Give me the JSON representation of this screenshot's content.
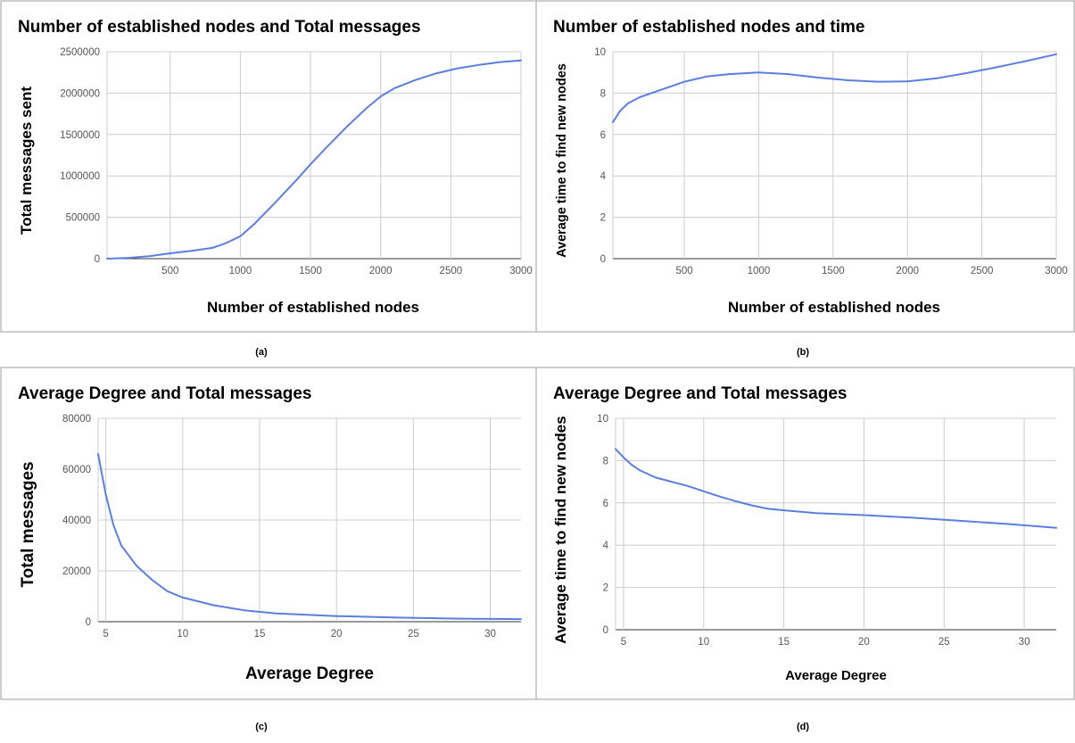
{
  "colors": {
    "series": "#5b7fe0",
    "grid": "#cccccc",
    "border": "#9e9e9e"
  },
  "chart_data": [
    {
      "type": "line",
      "caption": "(a)",
      "title": "Number of established nodes and Total messages",
      "xlabel": "Number of established nodes",
      "ylabel": "Total messages sent",
      "xlim": [
        50,
        3000
      ],
      "ylim": [
        0,
        2500000
      ],
      "xticks": [
        500,
        1000,
        1500,
        2000,
        2500,
        3000
      ],
      "yticks": [
        0,
        500000,
        1000000,
        1500000,
        2000000,
        2500000
      ],
      "ytick_labels": [
        "0",
        "500000",
        "1000000",
        "1500000",
        "2000000",
        "2500000"
      ],
      "grid": true,
      "series": [
        {
          "x": [
            50,
            200,
            350,
            500,
            650,
            800,
            900,
            1000,
            1100,
            1250,
            1400,
            1500,
            1600,
            1750,
            1900,
            2000,
            2100,
            2250,
            2400,
            2550,
            2700,
            2850,
            3000
          ],
          "y": [
            0,
            10000,
            30000,
            65000,
            95000,
            130000,
            190000,
            270000,
            420000,
            680000,
            950000,
            1140000,
            1320000,
            1580000,
            1820000,
            1960000,
            2060000,
            2160000,
            2240000,
            2300000,
            2340000,
            2375000,
            2395000
          ]
        }
      ]
    },
    {
      "type": "line",
      "caption": "(b)",
      "title": "Number of established nodes and time",
      "xlabel": "Number of established nodes",
      "ylabel": "Average time to find new nodes",
      "xlim": [
        20,
        3000
      ],
      "ylim": [
        0,
        10
      ],
      "xticks": [
        500,
        1000,
        1500,
        2000,
        2500,
        3000
      ],
      "yticks": [
        0,
        2,
        4,
        6,
        8,
        10
      ],
      "ytick_labels": [
        "0",
        "2",
        "4",
        "6",
        "8",
        "10"
      ],
      "grid": true,
      "series": [
        {
          "x": [
            20,
            70,
            120,
            200,
            300,
            400,
            500,
            650,
            800,
            1000,
            1200,
            1400,
            1600,
            1800,
            2000,
            2200,
            2400,
            2600,
            2800,
            3000
          ],
          "y": [
            6.6,
            7.15,
            7.5,
            7.8,
            8.05,
            8.3,
            8.55,
            8.8,
            8.92,
            9.0,
            8.92,
            8.75,
            8.62,
            8.55,
            8.57,
            8.72,
            8.97,
            9.25,
            9.55,
            9.88
          ]
        }
      ]
    },
    {
      "type": "line",
      "caption": "(c)",
      "title": "Average Degree and Total messages",
      "xlabel": "Average Degree",
      "ylabel": "Total messages",
      "xlim": [
        4.5,
        32
      ],
      "ylim": [
        0,
        80000
      ],
      "xticks": [
        5,
        10,
        15,
        20,
        25,
        30
      ],
      "yticks": [
        0,
        20000,
        40000,
        60000,
        80000
      ],
      "ytick_labels": [
        "0",
        "20000",
        "40000",
        "60000",
        "80000"
      ],
      "grid": true,
      "series": [
        {
          "x": [
            4.5,
            5,
            5.5,
            6,
            7,
            8,
            9,
            10,
            12,
            14,
            16,
            20,
            24,
            28,
            32
          ],
          "y": [
            66000,
            50000,
            38000,
            30000,
            22000,
            16500,
            12000,
            9500,
            6500,
            4500,
            3300,
            2200,
            1600,
            1200,
            1000
          ]
        }
      ]
    },
    {
      "type": "line",
      "caption": "(d)",
      "title": "Average Degree and Total messages",
      "xlabel": "Average Degree",
      "ylabel": "Average time to find new nodes",
      "xlim": [
        4.5,
        32
      ],
      "ylim": [
        0,
        10
      ],
      "xticks": [
        5,
        10,
        15,
        20,
        25,
        30
      ],
      "yticks": [
        0,
        2,
        4,
        6,
        8,
        10
      ],
      "ytick_labels": [
        "0",
        "2",
        "4",
        "6",
        "8",
        "10"
      ],
      "grid": true,
      "series": [
        {
          "x": [
            4.5,
            5,
            5.5,
            6,
            7,
            8,
            9,
            10,
            11,
            12,
            13,
            14,
            15,
            17,
            20,
            23,
            26,
            29,
            32
          ],
          "y": [
            8.55,
            8.15,
            7.8,
            7.55,
            7.2,
            7.0,
            6.8,
            6.55,
            6.3,
            6.08,
            5.88,
            5.72,
            5.65,
            5.52,
            5.42,
            5.3,
            5.15,
            5.0,
            4.82
          ]
        }
      ]
    }
  ]
}
